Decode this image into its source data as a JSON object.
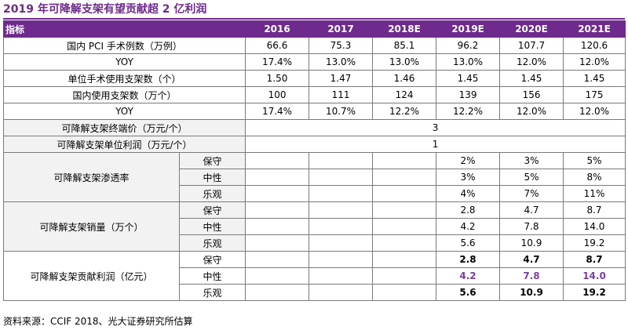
{
  "title": "2019 年可降解支架有望贡献超 2 亿利润",
  "header": {
    "label": "指标",
    "years": [
      "2016",
      "2017",
      "2018E",
      "2019E",
      "2020E",
      "2021E"
    ]
  },
  "rows": [
    {
      "label": "国内 PCI 手术例数（万例）",
      "values": [
        "66.6",
        "75.3",
        "85.1",
        "96.2",
        "107.7",
        "120.6"
      ]
    },
    {
      "label": "YOY",
      "values": [
        "17.4%",
        "13.0%",
        "13.0%",
        "13.0%",
        "12.0%",
        "12.0%"
      ]
    },
    {
      "label": "单位手术使用支架数（个）",
      "values": [
        "1.50",
        "1.47",
        "1.46",
        "1.45",
        "1.45",
        "1.45"
      ]
    },
    {
      "label": "国内使用支架数（万个）",
      "values": [
        "100",
        "111",
        "124",
        "139",
        "156",
        "175"
      ]
    },
    {
      "label": "YOY",
      "values": [
        "17.4%",
        "10.7%",
        "12.2%",
        "12.2%",
        "12.0%",
        "12.0%"
      ]
    }
  ],
  "merged_rows": [
    {
      "label": "可降解支架终端价（万元/个）",
      "value": "3"
    },
    {
      "label": "可降解支架单位利润（万元/个）",
      "value": "1"
    }
  ],
  "groups": [
    {
      "label": "可降解支架渗透率",
      "subrows": [
        {
          "name": "保守",
          "values": [
            "2%",
            "3%",
            "5%"
          ]
        },
        {
          "name": "中性",
          "values": [
            "3%",
            "5%",
            "8%"
          ]
        },
        {
          "name": "乐观",
          "values": [
            "4%",
            "7%",
            "11%"
          ]
        }
      ]
    },
    {
      "label": "可降解支架销量（万个）",
      "subrows": [
        {
          "name": "保守",
          "values": [
            "2.8",
            "4.7",
            "8.7"
          ]
        },
        {
          "name": "中性",
          "values": [
            "4.2",
            "7.8",
            "14.0"
          ]
        },
        {
          "name": "乐观",
          "values": [
            "5.6",
            "10.9",
            "19.2"
          ]
        }
      ]
    },
    {
      "label": "可降解支架贡献利润（亿元）",
      "subrows": [
        {
          "name": "保守",
          "values": [
            "2.8",
            "4.7",
            "8.7"
          ]
        },
        {
          "name": "中性",
          "values": [
            "4.2",
            "7.8",
            "14.0"
          ]
        },
        {
          "name": "乐观",
          "values": [
            "5.6",
            "10.9",
            "19.2"
          ]
        }
      ]
    }
  ],
  "source": "资料来源：CCIF 2018、光大证券研究所估算"
}
